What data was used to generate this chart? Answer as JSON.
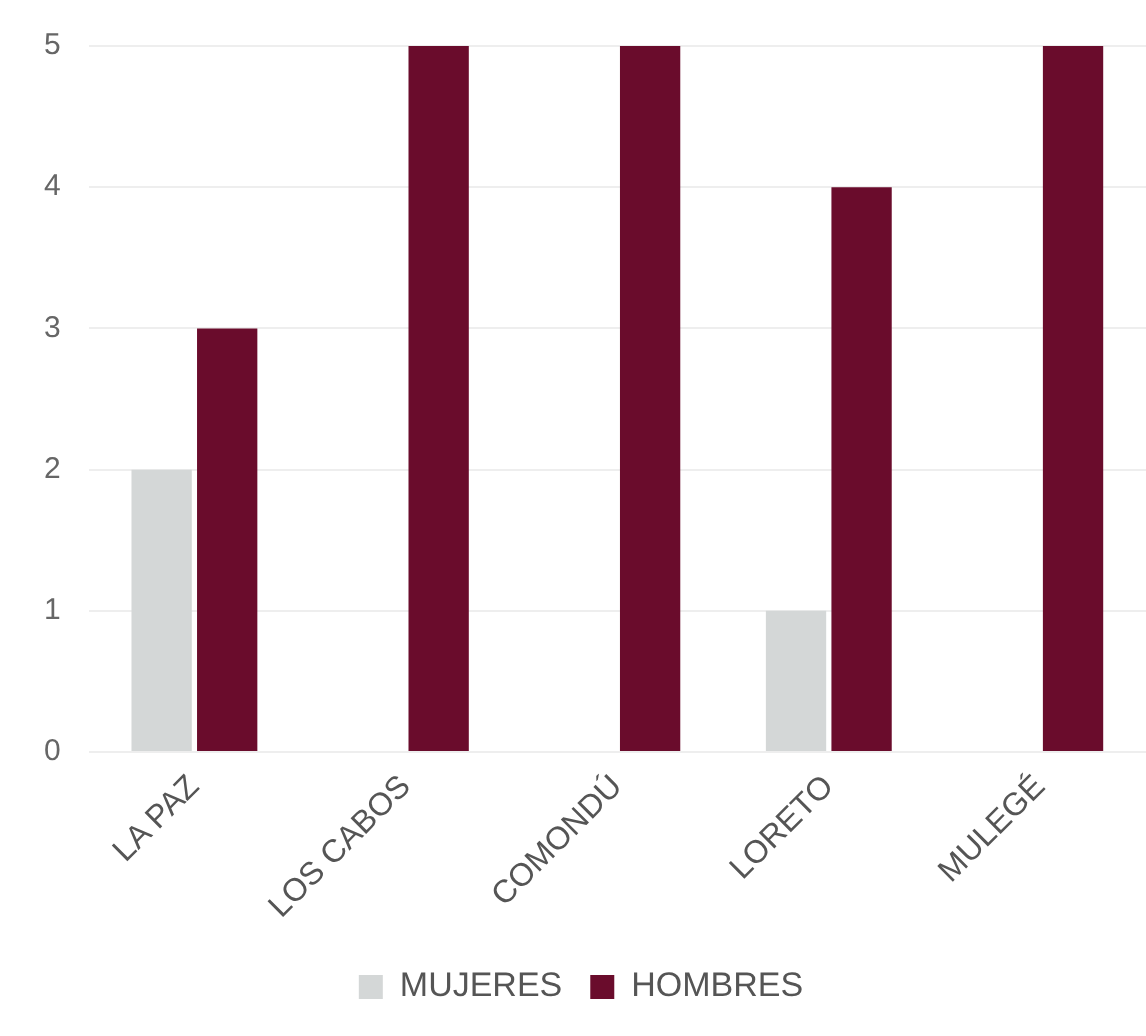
{
  "chart_data": {
    "type": "bar",
    "categories": [
      "LA PAZ",
      "LOS CABOS",
      "COMONDÚ",
      "LORETO",
      "MULEGÉ"
    ],
    "series": [
      {
        "name": "MUJERES",
        "color": "#d4d7d7",
        "values": [
          2,
          0,
          0,
          1,
          0
        ]
      },
      {
        "name": "HOMBRES",
        "color": "#6a0c2c",
        "values": [
          3,
          5,
          5,
          4,
          5
        ]
      }
    ],
    "ylim": [
      0,
      5
    ],
    "yticks": [
      0,
      1,
      2,
      3,
      4,
      5
    ],
    "grid": "y",
    "legend": "bottom"
  }
}
